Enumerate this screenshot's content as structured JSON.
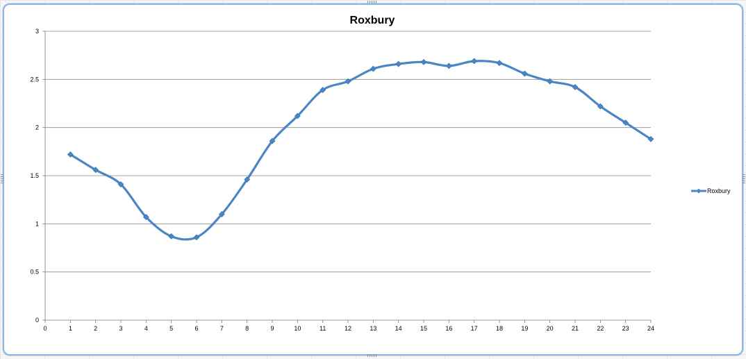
{
  "chart_data": {
    "type": "line",
    "title": "Roxbury",
    "xlabel": "",
    "ylabel": "",
    "x_ticks": [
      "0",
      "1",
      "2",
      "3",
      "4",
      "5",
      "6",
      "7",
      "8",
      "9",
      "10",
      "11",
      "12",
      "13",
      "14",
      "15",
      "16",
      "17",
      "18",
      "19",
      "20",
      "21",
      "22",
      "23",
      "24"
    ],
    "y_ticks": [
      "0",
      "0.5",
      "1",
      "1.5",
      "2",
      "2.5",
      "3"
    ],
    "xlim": [
      0,
      24
    ],
    "ylim": [
      0,
      3
    ],
    "grid": "horizontal",
    "smooth": true,
    "legend_position": "right",
    "series": [
      {
        "name": "Roxbury",
        "color": "#4a86c5",
        "x": [
          1,
          2,
          3,
          4,
          5,
          6,
          7,
          8,
          9,
          10,
          11,
          12,
          13,
          14,
          15,
          16,
          17,
          18,
          19,
          20,
          21,
          22,
          23,
          24
        ],
        "values": [
          1.72,
          1.56,
          1.41,
          1.07,
          0.87,
          0.86,
          1.1,
          1.46,
          1.86,
          2.12,
          2.39,
          2.48,
          2.61,
          2.66,
          2.68,
          2.64,
          2.69,
          2.67,
          2.56,
          2.48,
          2.42,
          2.22,
          2.05,
          1.88
        ]
      }
    ]
  }
}
